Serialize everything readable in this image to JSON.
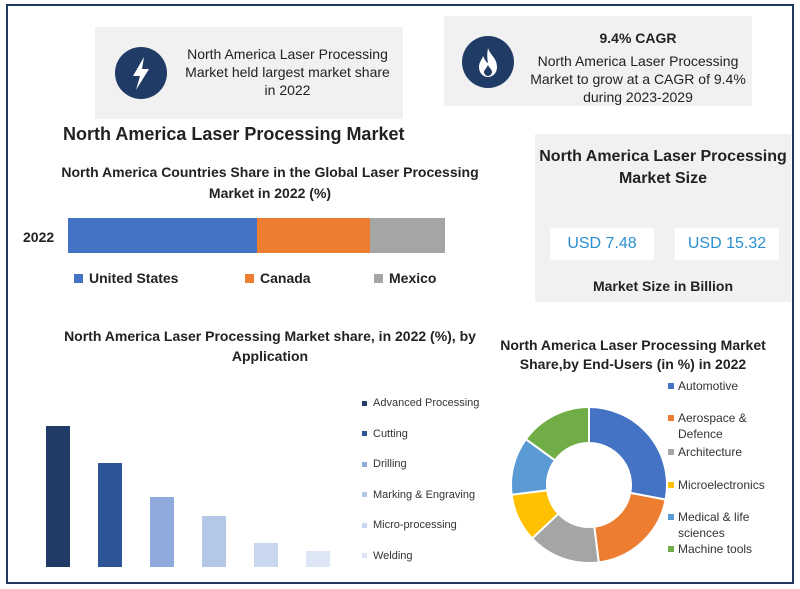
{
  "callouts": {
    "left": {
      "text": "North America Laser Processing Market held largest market share in 2022",
      "icon": "lightning-icon"
    },
    "right": {
      "title": "9.4% CAGR",
      "text": "North America Laser Processing Market to grow at a CAGR of 9.4% during 2023-2029",
      "icon": "flame-icon"
    }
  },
  "main_title": "North America Laser Processing Market",
  "market_size": {
    "title": "North America Laser Processing Market Size",
    "value1": "USD 7.48",
    "value2": "USD 15.32",
    "footer": "Market Size in Billion"
  },
  "colors": {
    "navy": "#1f3b66",
    "us": "#4472c4",
    "canada": "#ed7d31",
    "mexico": "#a5a5a5",
    "value_text": "#2a8fcf"
  },
  "chart_data": [
    {
      "type": "bar",
      "orientation": "horizontal-stacked",
      "title": "North America Countries Share in the Global Laser Processing Market in 2022 (%)",
      "categories": [
        "2022"
      ],
      "series": [
        {
          "name": "United States",
          "values": [
            50
          ],
          "color": "#4472c4"
        },
        {
          "name": "Canada",
          "values": [
            30
          ],
          "color": "#ed7d31"
        },
        {
          "name": "Mexico",
          "values": [
            20
          ],
          "color": "#a5a5a5"
        }
      ],
      "legend": "bottom"
    },
    {
      "type": "bar",
      "title": "North America Laser Processing Market share, in 2022 (%), by Application",
      "categories": [
        "Advanced Processing",
        "Cutting",
        "Drilling",
        "Marking & Engraving",
        "Micro-processing",
        "Welding"
      ],
      "values": [
        100,
        74,
        50,
        36,
        17,
        11
      ],
      "colors": [
        "#1f3b66",
        "#2d5597",
        "#8faadc",
        "#b4c7e7",
        "#c9d8ef",
        "#dce6f4"
      ],
      "legend": "right"
    },
    {
      "type": "pie",
      "variant": "donut",
      "title": "North America Laser Processing Market Share,by End-Users (in %) in 2022",
      "categories": [
        "Automotive",
        "Aerospace & Defence",
        "Architecture",
        "Microelectronics",
        "Medical & life sciences",
        "Machine tools"
      ],
      "values": [
        28,
        20,
        15,
        10,
        12,
        15
      ],
      "colors": [
        "#4472c4",
        "#ed7d31",
        "#a5a5a5",
        "#ffc000",
        "#5b9bd5",
        "#70ad47"
      ],
      "legend": "right"
    }
  ]
}
